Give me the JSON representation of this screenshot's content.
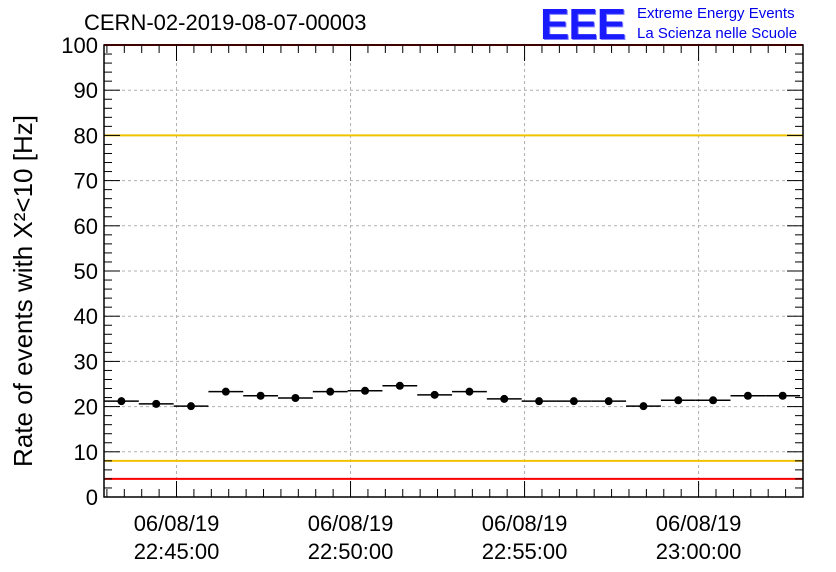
{
  "title": "CERN-02-2019-08-07-00003",
  "logo": {
    "mark": "EEE",
    "line1": "Extreme Energy Events",
    "line2": "La Scienza nelle Scuole",
    "color": "#0000ee"
  },
  "chart_data": {
    "type": "scatter",
    "ylabel": "Rate of events with X²<10 [Hz]",
    "ylim": [
      0,
      100
    ],
    "yticks": [
      0,
      10,
      20,
      30,
      40,
      50,
      60,
      70,
      80,
      90,
      100
    ],
    "x_tick_labels": [
      {
        "date": "06/08/19",
        "time": "22:45:00"
      },
      {
        "date": "06/08/19",
        "time": "22:50:00"
      },
      {
        "date": "06/08/19",
        "time": "22:55:00"
      },
      {
        "date": "06/08/19",
        "time": "23:00:00"
      }
    ],
    "xlim": [
      "22:42:55",
      "23:03:00"
    ],
    "bin_width_seconds": 60,
    "grid": true,
    "series": [
      {
        "marker": "filled-circle",
        "color": "#000000",
        "x": [
          "22:43:25",
          "22:44:25",
          "22:45:25",
          "22:46:25",
          "22:47:25",
          "22:48:25",
          "22:49:25",
          "22:50:25",
          "22:51:25",
          "22:52:25",
          "22:53:25",
          "22:54:25",
          "22:55:25",
          "22:56:25",
          "22:57:25",
          "22:58:25",
          "22:59:25",
          "23:00:25",
          "23:01:25",
          "23:02:25"
        ],
        "y": [
          21.2,
          20.6,
          20.1,
          23.3,
          22.4,
          21.9,
          23.3,
          23.5,
          24.6,
          22.6,
          23.3,
          21.7,
          21.2,
          21.2,
          21.2,
          20.1,
          21.4,
          21.4,
          22.4,
          22.4
        ]
      }
    ],
    "reference_lines": [
      {
        "y": 4,
        "color": "#ff0000"
      },
      {
        "y": 8,
        "color": "#f2c200"
      },
      {
        "y": 80,
        "color": "#f2c200"
      },
      {
        "y": 100,
        "color": "#ff0000"
      }
    ]
  }
}
